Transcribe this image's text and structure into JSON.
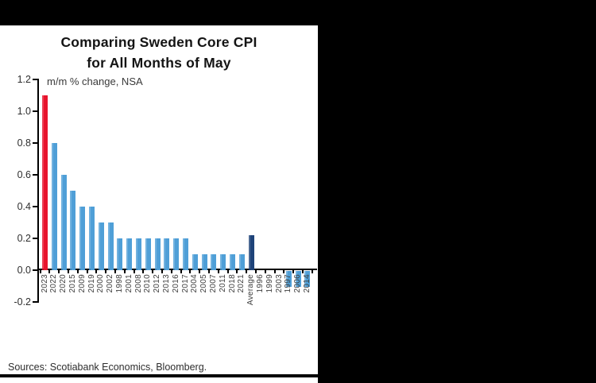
{
  "chart": {
    "title_line1": "Comparing Sweden Core CPI",
    "title_line2": "for All Months of May",
    "units_label": "m/m % change, NSA",
    "sources": "Sources: Scotiabank Economics, Bloomberg."
  },
  "colors": {
    "default_bar": "#4f9fd7",
    "highlight_bar": "#e8142d",
    "average_bar": "#1e4379",
    "axis": "#000000",
    "panel_black": "#000000"
  },
  "chart_data": {
    "type": "bar",
    "title": "Comparing Sweden Core CPI for All Months of May",
    "annotation": "m/m % change, NSA",
    "xlabel": "",
    "ylabel": "m/m % change, NSA",
    "ylim": [
      -0.2,
      1.2
    ],
    "ytick_labels": [
      "1.2",
      "1.0",
      "0.8",
      "0.6",
      "0.4",
      "0.2",
      "0.0",
      "-0.2"
    ],
    "grid": false,
    "legend": "none",
    "categories": [
      "2023",
      "2022",
      "2020",
      "2015",
      "2009",
      "2019",
      "2000",
      "2002",
      "1998",
      "2001",
      "2008",
      "2010",
      "2012",
      "2013",
      "2016",
      "2017",
      "2004",
      "2005",
      "2007",
      "2011",
      "2018",
      "2021",
      "Average",
      "1996",
      "1999",
      "2003",
      "1997",
      "2006",
      "2014"
    ],
    "values": [
      1.1,
      0.8,
      0.6,
      0.5,
      0.4,
      0.4,
      0.3,
      0.3,
      0.2,
      0.2,
      0.2,
      0.2,
      0.2,
      0.2,
      0.2,
      0.2,
      0.1,
      0.1,
      0.1,
      0.1,
      0.1,
      0.1,
      0.22,
      0.0,
      0.0,
      0.0,
      -0.1,
      -0.1,
      -0.1
    ],
    "bar_colors": {
      "2023": "#e8142d",
      "Average": "#1e4379"
    },
    "default_bar_color": "#4f9fd7"
  }
}
